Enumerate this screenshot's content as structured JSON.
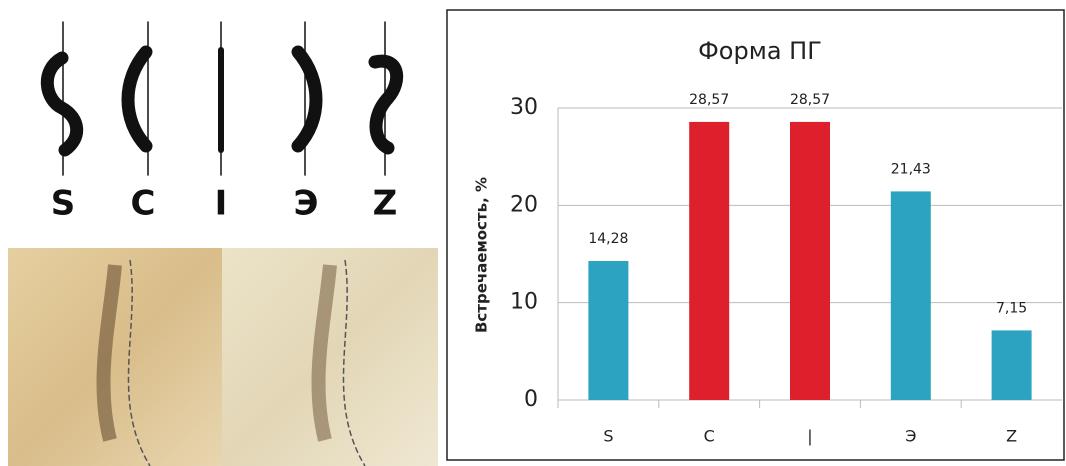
{
  "illustration": {
    "labels": [
      "S",
      "C",
      "I",
      "Э",
      "Z"
    ]
  },
  "chart_data": {
    "type": "bar",
    "title": "Форма ПГ",
    "y_label": "Встречаемость, %",
    "categories": [
      "S",
      "C",
      "|",
      "Э",
      "Z"
    ],
    "values": [
      14.28,
      28.57,
      28.57,
      21.43,
      7.15
    ],
    "value_labels": [
      "14,28",
      "28,57",
      "28,57",
      "21,43",
      "7,15"
    ],
    "colors": [
      "#2ba3c1",
      "#de1f2c",
      "#de1f2c",
      "#2ba3c1",
      "#2ba3c1"
    ],
    "ylim": [
      0,
      30
    ],
    "yticks": [
      0,
      10,
      20,
      30
    ],
    "grid": true
  }
}
